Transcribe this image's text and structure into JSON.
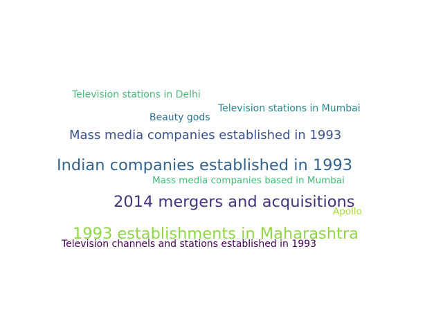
{
  "words": [
    {
      "text": "Television stations in Delhi",
      "color": "#48b97a"
    },
    {
      "text": "Television stations in Mumbai",
      "color": "#23888e"
    },
    {
      "text": "Beauty gods",
      "color": "#2c728e"
    },
    {
      "text": "Mass media companies established in 1993",
      "color": "#3b528b"
    },
    {
      "text": "Indian companies established in 1993",
      "color": "#33638d"
    },
    {
      "text": "Mass media companies based in Mumbai",
      "color": "#40bd72"
    },
    {
      "text": "2014 mergers and acquisitions",
      "color": "#46337e"
    },
    {
      "text": "Apollo",
      "color": "#a5db36"
    },
    {
      "text": "1993 establishments in Maharashtra",
      "color": "#8fd744"
    },
    {
      "text": "Television channels and stations established in 1993",
      "color": "#440154"
    }
  ]
}
